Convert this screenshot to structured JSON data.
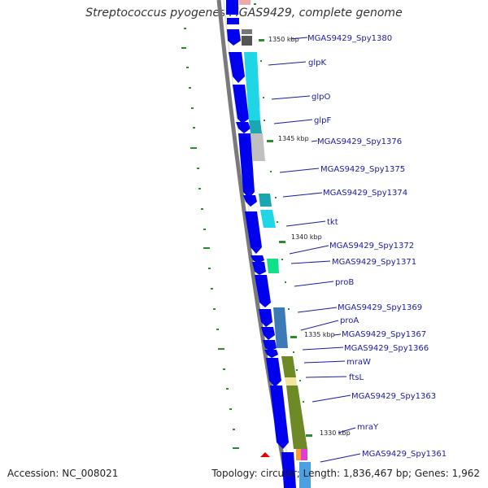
{
  "title": "Streptococcus pyogenes MGAS9429, complete genome",
  "accession_text": "Accession: NC_008021",
  "summary_text": "Topology: circular; Length: 1,836,467 bp; Genes: 1,962",
  "colors": {
    "backbone": "#7a7a7a",
    "cds_strand": "#0000ee",
    "cog_cyan": "#1fd6e6",
    "cog_teal": "#1aa7b2",
    "cog_gray": "#c0c0c0",
    "cog_green": "#11e08a",
    "cog_steelblue": "#3b7ab7",
    "cog_olive": "#6d8a26",
    "cog_khaki": "#f0e6a0",
    "tick": "#2e8b2e",
    "label": "#1a1aa6",
    "marker": "#e00000"
  },
  "kbp_marks": [
    "1350 kbp",
    "1345 kbp",
    "1340 kbp",
    "1335 kbp",
    "1330 kbp"
  ],
  "genes": [
    "MGAS9429_Spy1380",
    "glpK",
    "glpO",
    "glpF",
    "MGAS9429_Spy1376",
    "MGAS9429_Spy1375",
    "MGAS9429_Spy1374",
    "tkt",
    "MGAS9429_Spy1372",
    "MGAS9429_Spy1371",
    "proB",
    "MGAS9429_Spy1369",
    "proA",
    "MGAS9429_Spy1367",
    "MGAS9429_Spy1366",
    "mraW",
    "ftsL",
    "MGAS9429_Spy1363",
    "mraY",
    "MGAS9429_Spy1361"
  ]
}
